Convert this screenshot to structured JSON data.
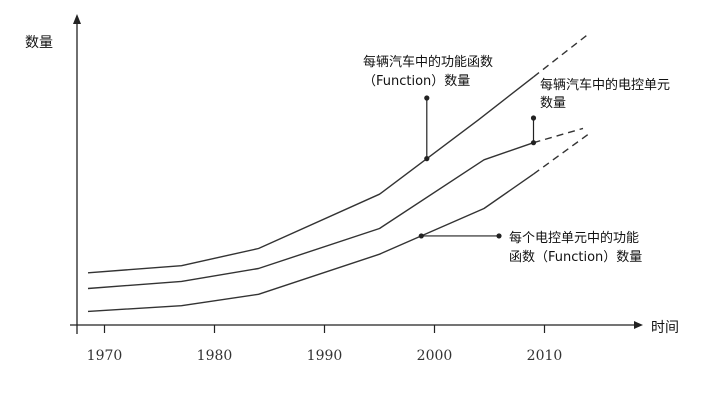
{
  "chart_data": {
    "type": "line",
    "xlabel": "",
    "ylabel": "数量",
    "x_axis_title": "时间",
    "xlim": [
      1967.5,
      2017.5
    ],
    "ylim": [
      0,
      100
    ],
    "x_ticks": [
      1970,
      1980,
      1990,
      2000,
      2010
    ],
    "x_tick_labels": [
      "1970",
      "1980",
      "1990",
      "2000",
      "2010"
    ],
    "y_ticks_shown": false,
    "grid": false,
    "series": [
      {
        "solid": [
          [
            1968.5,
            16.5
          ],
          [
            1977,
            19
          ],
          [
            1984,
            25
          ],
          [
            1995,
            44
          ],
          [
            2004,
            70
          ],
          [
            2009,
            85
          ]
        ],
        "dashed": [
          [
            2009,
            85
          ],
          [
            2014,
            100
          ]
        ]
      },
      {
        "solid": [
          [
            1968.5,
            11
          ],
          [
            1977,
            13.5
          ],
          [
            1984,
            18
          ],
          [
            1995,
            32
          ],
          [
            2004.5,
            56
          ],
          [
            2009,
            62
          ]
        ],
        "dashed": [
          [
            2009,
            62
          ],
          [
            2013.5,
            67
          ]
        ]
      },
      {
        "solid": [
          [
            1968.5,
            3
          ],
          [
            1977,
            5
          ],
          [
            1984,
            9
          ],
          [
            1995,
            23
          ],
          [
            2004.5,
            39
          ],
          [
            2009,
            51
          ]
        ],
        "dashed": [
          [
            2009,
            51
          ],
          [
            2014,
            65
          ]
        ]
      }
    ],
    "annotations": [
      {
        "lines": [
          "每辆汽车中的功能函数",
          "（Function）数量"
        ],
        "series_index": 0,
        "at_x": 1999.3
      },
      {
        "lines": [
          "每辆汽车中的电控单元",
          "数量"
        ],
        "series_index": 1,
        "at_x": 2009
      },
      {
        "lines": [
          "每个电控单元中的功能",
          "函数（Function）数量"
        ],
        "series_index": 2,
        "at_x": 1998.8
      }
    ]
  }
}
